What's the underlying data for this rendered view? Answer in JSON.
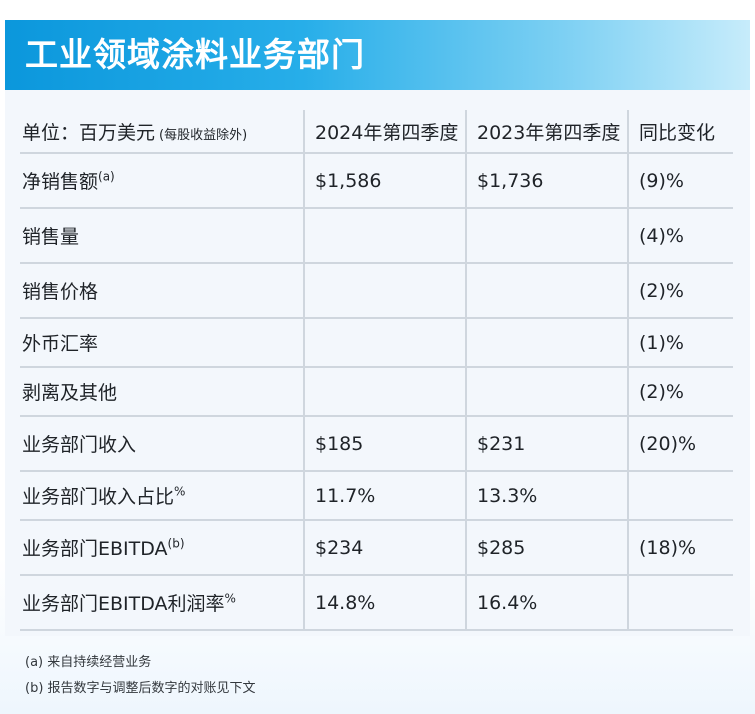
{
  "title": "工业领域涂料业务部门",
  "header": {
    "unit_label": "单位：百万美元",
    "unit_note": "(每股收益除外)",
    "col_2024": "2024年第四季度",
    "col_2023": "2023年第四季度",
    "col_change": "同比变化"
  },
  "rows": [
    {
      "label": "净销售额",
      "sup": "(a)",
      "v2024": "$1,586",
      "v2023": "$1,736",
      "change": "(9)%"
    },
    {
      "label": "销售量",
      "sup": "",
      "v2024": "",
      "v2023": "",
      "change": "(4)%"
    },
    {
      "label": "销售价格",
      "sup": "",
      "v2024": "",
      "v2023": "",
      "change": "(2)%"
    },
    {
      "label": "外币汇率",
      "sup": "",
      "v2024": "",
      "v2023": "",
      "change": "(1)%"
    },
    {
      "label": "剥离及其他",
      "sup": "",
      "v2024": "",
      "v2023": "",
      "change": "(2)%"
    },
    {
      "label": "业务部门收入",
      "sup": "",
      "v2024": "$185",
      "v2023": "$231",
      "change": "(20)%"
    },
    {
      "label": "业务部门收入占比",
      "sup": "%",
      "v2024": "11.7%",
      "v2023": "13.3%",
      "change": ""
    },
    {
      "label": "业务部门EBITDA",
      "sup": "(b)",
      "v2024": "$234",
      "v2023": "$285",
      "change": "(18)%"
    },
    {
      "label": "业务部门EBITDA利润率",
      "sup": "%",
      "v2024": "14.8%",
      "v2023": "16.4%",
      "change": ""
    }
  ],
  "footnotes": [
    "(a) 来自持续经营业务",
    "(b) 报告数字与调整后数字的对账见下文"
  ]
}
